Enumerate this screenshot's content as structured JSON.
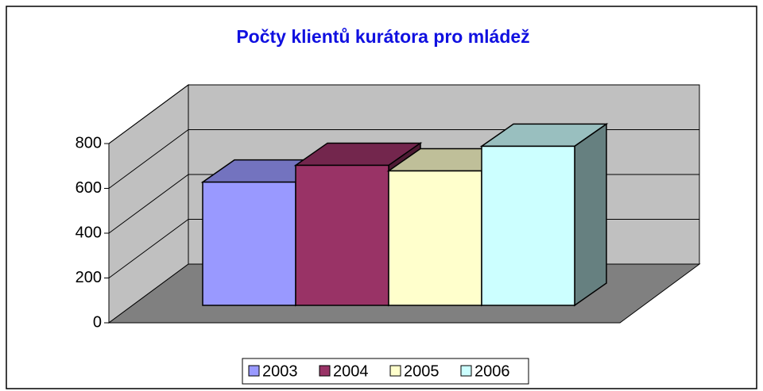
{
  "chart_data": {
    "type": "bar3d",
    "title": "Počty klientů kurátora pro mládež",
    "categories": [
      "2003",
      "2004",
      "2005",
      "2006"
    ],
    "values": [
      550,
      625,
      600,
      710
    ],
    "colors": [
      "#9999ff",
      "#993366",
      "#ffffcc",
      "#ccffff"
    ],
    "ylim": [
      0,
      800
    ],
    "yticks": [
      0,
      200,
      400,
      600,
      800
    ],
    "grid": true,
    "legend": "bottom"
  }
}
